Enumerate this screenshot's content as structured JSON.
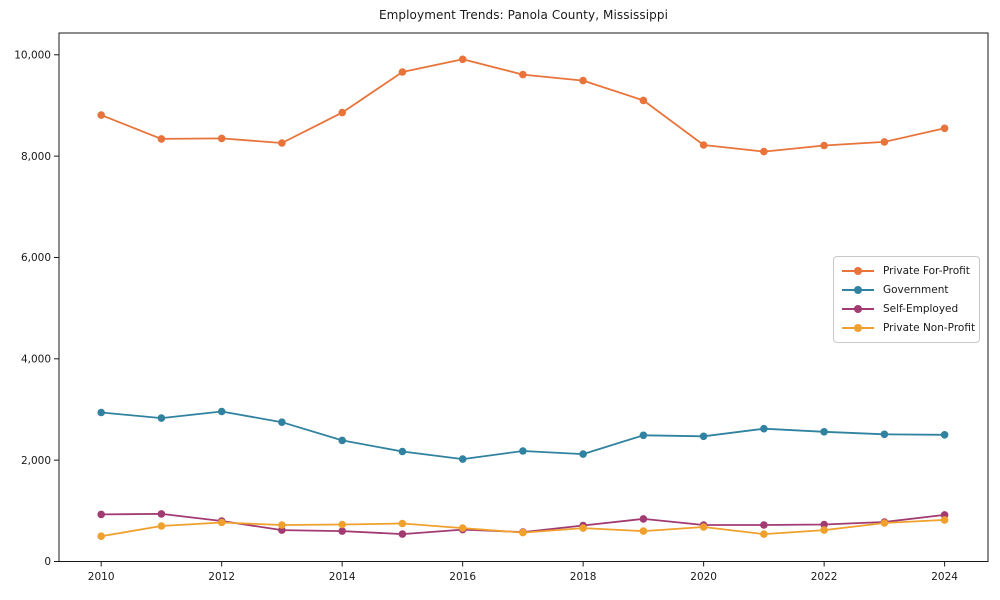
{
  "chart_data": {
    "type": "line",
    "title": "Employment Trends: Panola County, Mississippi",
    "x": [
      2010,
      2011,
      2012,
      2013,
      2014,
      2015,
      2016,
      2017,
      2018,
      2019,
      2020,
      2021,
      2022,
      2023,
      2024
    ],
    "series": [
      {
        "name": "Private For-Profit",
        "color": "#e8743b",
        "values": [
          8810,
          8340,
          8350,
          8260,
          8860,
          9660,
          9910,
          9610,
          9490,
          9100,
          8220,
          8090,
          8210,
          8280,
          8550
        ]
      },
      {
        "name": "Government",
        "color": "#3182a0",
        "values": [
          2940,
          2830,
          2960,
          2750,
          2390,
          2170,
          2020,
          2180,
          2120,
          2490,
          2470,
          2620,
          2560,
          2510,
          2500
        ]
      },
      {
        "name": "Self-Employed",
        "color": "#a23b72",
        "values": [
          930,
          940,
          800,
          620,
          600,
          540,
          630,
          580,
          710,
          840,
          720,
          720,
          730,
          780,
          920
        ]
      },
      {
        "name": "Private Non-Profit",
        "color": "#f0a02d",
        "values": [
          500,
          700,
          770,
          720,
          730,
          750,
          660,
          570,
          660,
          600,
          680,
          540,
          620,
          760,
          820
        ]
      }
    ],
    "xlabel": "",
    "ylabel": "",
    "xlim": [
      2009.3,
      2024.72
    ],
    "ylim": [
      0,
      10430
    ],
    "xticks": [
      2010,
      2012,
      2014,
      2016,
      2018,
      2020,
      2022,
      2024
    ],
    "xtick_labels": [
      "2010",
      "2012",
      "2014",
      "2016",
      "2018",
      "2020",
      "2022",
      "2024"
    ],
    "yticks": [
      0,
      2000,
      4000,
      6000,
      8000,
      10000
    ],
    "ytick_labels": [
      "0",
      "2,000",
      "4,000",
      "6,000",
      "8,000",
      "10,000"
    ],
    "grid": false,
    "legend_position": "center right",
    "frame_color": "#1a1a1a",
    "tick_label_color": "#1a1a1a",
    "marker": "circle"
  }
}
